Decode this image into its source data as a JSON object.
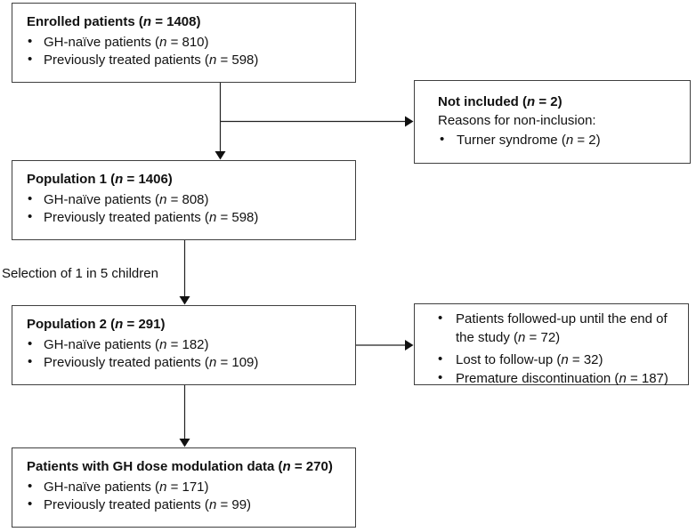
{
  "colors": {
    "box_border": "#3f3f3f",
    "arrow": "#1f1f1f",
    "text": "#111111",
    "background": "#ffffff"
  },
  "flow": {
    "enrolled": {
      "title": "Enrolled patients (n = 1408)",
      "items": [
        "GH-naïve patients (n = 810)",
        "Previously treated patients (n = 598)"
      ]
    },
    "not_included": {
      "title": "Not included (n = 2)",
      "subtitle": "Reasons for non-inclusion:",
      "items": [
        "Turner syndrome (n = 2)"
      ]
    },
    "population_1": {
      "title": "Population 1 (n = 1406)",
      "items": [
        "GH-naïve patients (n = 808)",
        "Previously treated patients (n = 598)"
      ]
    },
    "selection_label": "Selection of 1 in 5 children",
    "population_2": {
      "title": "Population 2 (n = 291)",
      "items": [
        "GH-naïve patients (n = 182)",
        "Previously treated patients (n = 109)"
      ]
    },
    "outcomes": {
      "items": [
        "Patients followed-up until the end of the study (n = 72)",
        "Lost to follow-up (n = 32)",
        "Premature discontinuation (n = 187)"
      ]
    },
    "dose_modulation": {
      "title": "Patients with GH dose modulation data (n = 270)",
      "items": [
        "GH-naïve patients (n = 171)",
        "Previously treated patients (n = 99)"
      ]
    }
  }
}
